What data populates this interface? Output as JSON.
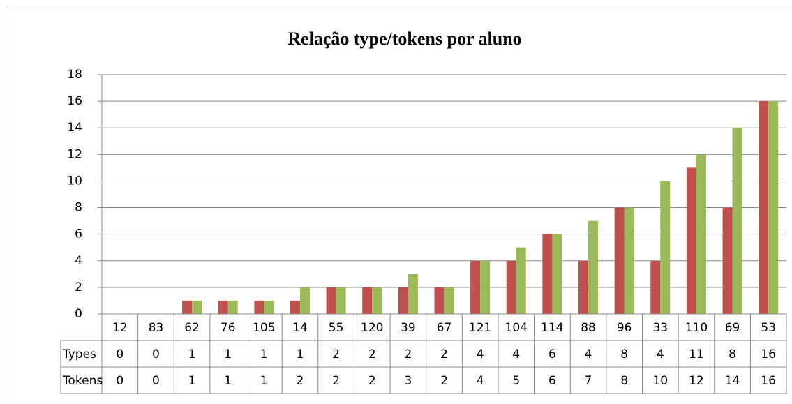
{
  "chart_data": {
    "type": "bar",
    "title": "Relação type/tokens por aluno",
    "categories": [
      "12",
      "83",
      "62",
      "76",
      "105",
      "14",
      "55",
      "120",
      "39",
      "67",
      "121",
      "104",
      "114",
      "88",
      "96",
      "33",
      "110",
      "69",
      "53"
    ],
    "series": [
      {
        "name": "Types",
        "color": "#c0504d",
        "values": [
          0,
          0,
          1,
          1,
          1,
          1,
          2,
          2,
          2,
          2,
          4,
          4,
          6,
          4,
          8,
          4,
          11,
          8,
          16
        ]
      },
      {
        "name": "Tokens",
        "color": "#9bbb59",
        "values": [
          0,
          0,
          1,
          1,
          1,
          2,
          2,
          2,
          3,
          2,
          4,
          5,
          6,
          7,
          8,
          10,
          12,
          14,
          16
        ]
      }
    ],
    "ylim": [
      0,
      18
    ],
    "yticks": [
      0,
      2,
      4,
      6,
      8,
      10,
      12,
      14,
      16,
      18
    ],
    "grid": true
  }
}
